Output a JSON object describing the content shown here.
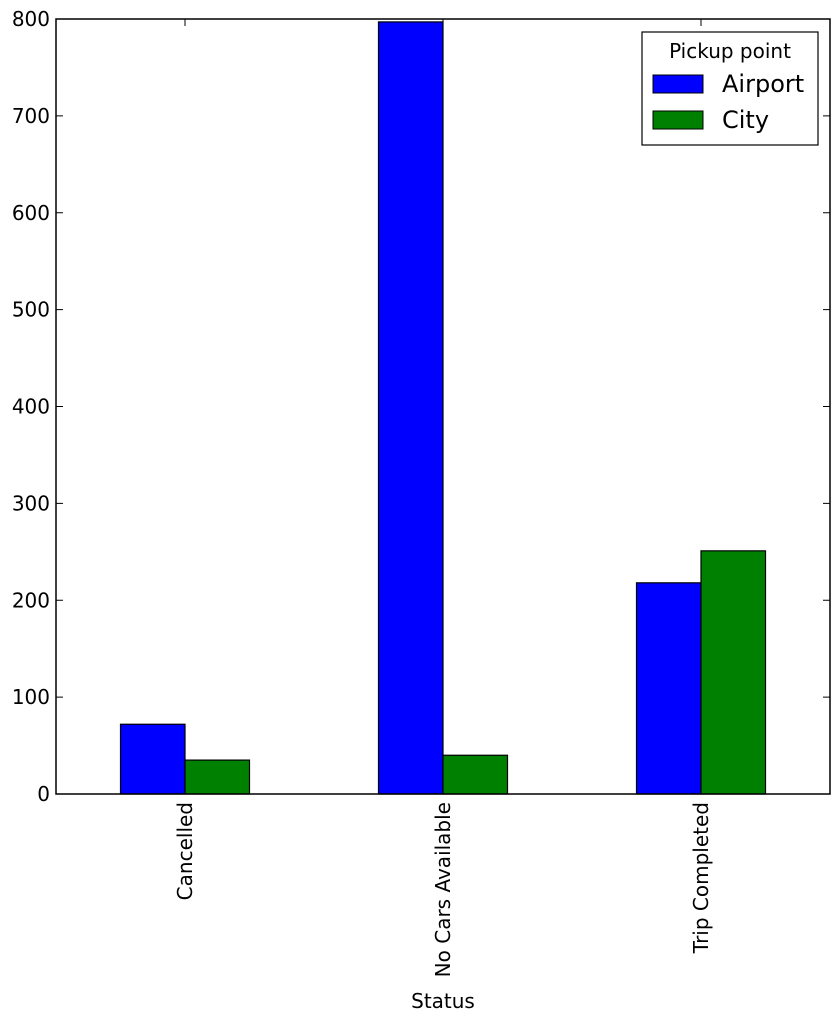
{
  "chart_data": {
    "type": "bar",
    "categories": [
      "Cancelled",
      "No Cars Available",
      "Trip Completed"
    ],
    "series": [
      {
        "name": "Airport",
        "values": [
          72,
          797,
          218
        ],
        "color": "#0000ff"
      },
      {
        "name": "City",
        "values": [
          35,
          40,
          251
        ],
        "color": "#008000"
      }
    ],
    "xlabel": "Status",
    "ylabel": "",
    "ylim": [
      0,
      800
    ],
    "yticks": [
      0,
      100,
      200,
      300,
      400,
      500,
      600,
      700,
      800
    ],
    "grid": false,
    "legend": {
      "title": "Pickup point",
      "placement": "top-right"
    }
  }
}
